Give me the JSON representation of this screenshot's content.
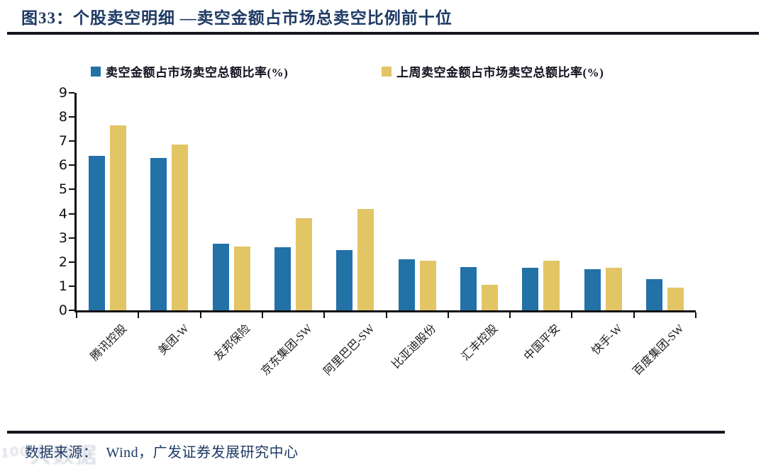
{
  "header": {
    "title": "图33：个股卖空明细 —卖空金额占市场总卖空比例前十位",
    "title_color": "#1e3a64",
    "rule_color": "#15151f"
  },
  "chart_data": {
    "type": "bar",
    "title": "个股卖空明细 —卖空金额占市场总卖空比例前十位",
    "categories": [
      "腾讯控股",
      "美团-W",
      "友邦保险",
      "京东集团-SW",
      "阿里巴巴-SW",
      "比亚迪股份",
      "汇丰控股",
      "中国平安",
      "快手-W",
      "百度集团-SW"
    ],
    "series": [
      {
        "name": "卖空金额占市场卖空总额比率(%)",
        "color": "#2271a7",
        "values": [
          6.4,
          6.3,
          2.75,
          2.6,
          2.5,
          2.1,
          1.8,
          1.75,
          1.7,
          1.3
        ]
      },
      {
        "name": "上周卖空金额占市场卖空总额比率(%)",
        "color": "#e2c565",
        "values": [
          7.65,
          6.85,
          2.65,
          3.8,
          4.2,
          2.05,
          1.05,
          2.05,
          1.75,
          0.95
        ]
      }
    ],
    "xlabel": "",
    "ylabel": "",
    "ylim": [
      0,
      9
    ],
    "yticks": [
      0,
      1,
      2,
      3,
      4,
      5,
      6,
      7,
      8,
      9
    ],
    "grid": false,
    "legend_position": "top",
    "axis_color": "#111111"
  },
  "footer": {
    "label": "数据来源：",
    "source": "Wind，广发证券发展研究中心",
    "watermark": "¹⁰⁰大数据"
  }
}
